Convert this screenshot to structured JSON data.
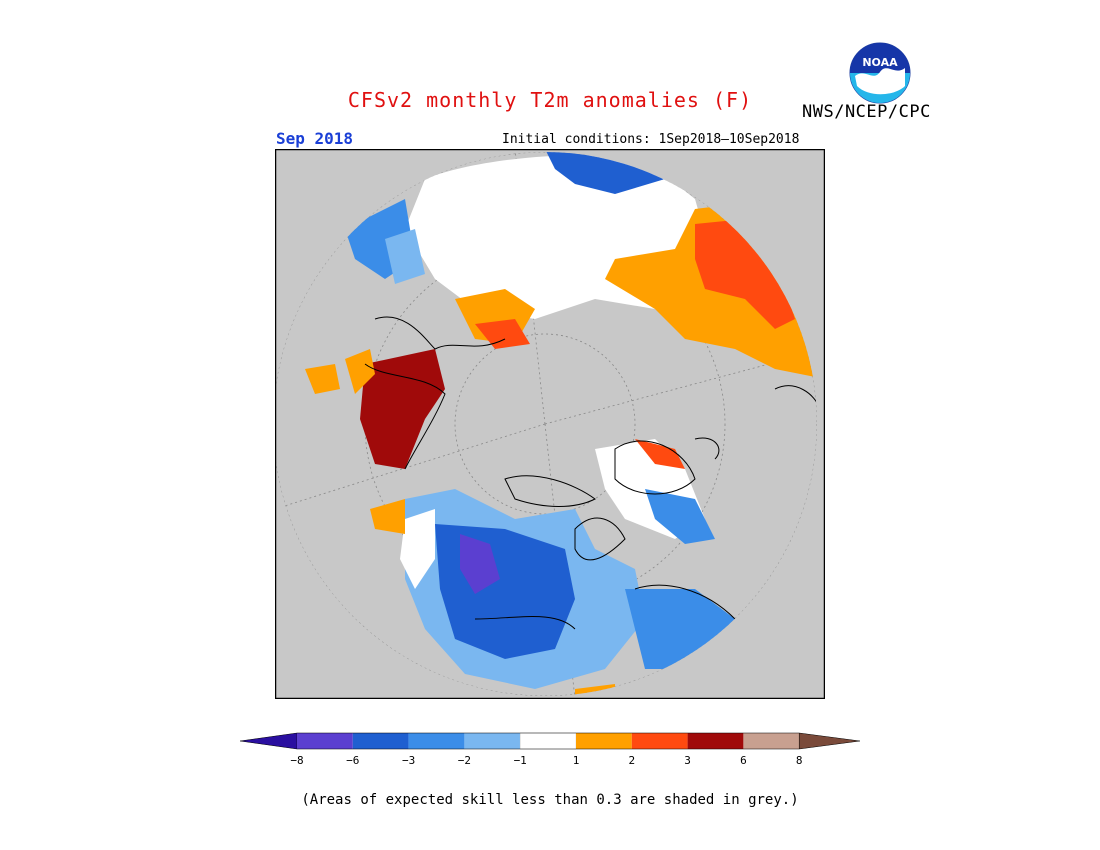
{
  "header": {
    "title": "CFSv2 monthly T2m anomalies (F)",
    "organization": "NWS/NCEP/CPC",
    "logo_text": "NOAA",
    "month": "Sep 2018",
    "initial_conditions": "Initial conditions: 1Sep2018–10Sep2018"
  },
  "legend": {
    "tick_labels": [
      "−8",
      "−6",
      "−3",
      "−2",
      "−1",
      "1",
      "2",
      "3",
      "6",
      "8"
    ],
    "colors": [
      "#2a0fa0",
      "#5b3fd0",
      "#1f5fd0",
      "#3b8de8",
      "#7ab7f0",
      "#ffffff",
      "#ffa000",
      "#ff4a10",
      "#a00a0a",
      "#c8a090",
      "#7a4a3a"
    ]
  },
  "footnote": "(Areas of expected skill less than 0.3 are shaded in grey.)",
  "colors": {
    "no_skill_grey": "#c8c8c8",
    "title_red": "#e01010",
    "month_blue": "#1a3fd6"
  }
}
